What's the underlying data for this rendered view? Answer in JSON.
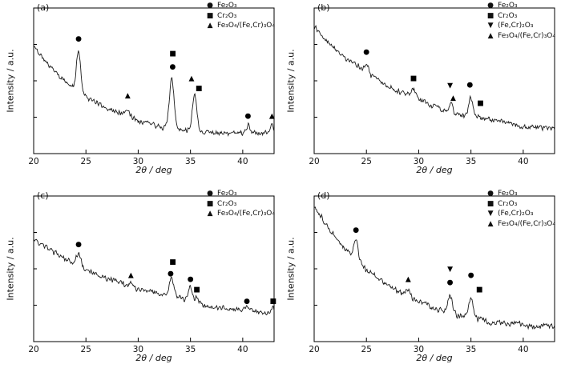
{
  "chart_data": [
    {
      "panel": "(a)",
      "type": "line",
      "xlabel": "2θ / deg",
      "ylabel": "Intensity / a.u.",
      "x_range": [
        20,
        43
      ],
      "x_ticks": [
        20,
        25,
        30,
        35,
        40
      ],
      "y_axis": "arbitrary units, no tick labels",
      "line_color": "#1a1a1a",
      "legend": [
        {
          "symbol": "filled-circle",
          "glyph": "●",
          "text": "Fe₂O₃"
        },
        {
          "symbol": "filled-square",
          "glyph": "■",
          "text": "Cr₂O₃"
        },
        {
          "symbol": "filled-triangle-up",
          "glyph": "▲",
          "text": "Fe₃O₄/(Fe,Cr)₃O₄"
        }
      ],
      "baseline": {
        "start": 0.74,
        "end": 0.13,
        "tau": 6
      },
      "noise": 0.02,
      "seed": 11,
      "peaks": [
        {
          "two_theta": 24.3,
          "rel_height": 0.28,
          "width": 0.28,
          "phase": "Fe₂O₃"
        },
        {
          "two_theta": 29.0,
          "rel_height": 0.05,
          "width": 0.25,
          "phase": "Fe₃O₄/(Fe,Cr)₃O₄"
        },
        {
          "two_theta": 33.2,
          "rel_height": 0.34,
          "width": 0.32,
          "phase": "Cr₂O₃ + Fe₂O₃"
        },
        {
          "two_theta": 35.4,
          "rel_height": 0.25,
          "width": 0.3,
          "phase": "Fe₃O₄/(Fe,Cr)₃O₄ + Cr₂O₃"
        },
        {
          "two_theta": 40.5,
          "rel_height": 0.05,
          "width": 0.25,
          "phase": "Fe₂O₃"
        },
        {
          "two_theta": 42.8,
          "rel_height": 0.06,
          "width": 0.25,
          "phase": "Fe₃O₄/(Fe,Cr)₃O₄"
        }
      ],
      "markers": [
        {
          "glyph": "●",
          "symbol": "filled-circle",
          "x": 24.3,
          "y": 0.79,
          "phase": "Fe₂O₃"
        },
        {
          "glyph": "▲",
          "symbol": "filled-triangle-up",
          "x": 29.0,
          "y": 0.4,
          "phase": "Fe₃O₄/(Fe,Cr)₃O₄"
        },
        {
          "glyph": "■",
          "symbol": "filled-square",
          "x": 33.3,
          "y": 0.69,
          "phase": "Cr₂O₃"
        },
        {
          "glyph": "●",
          "symbol": "filled-circle",
          "x": 33.3,
          "y": 0.6,
          "phase": "Fe₂O₃"
        },
        {
          "glyph": "▲",
          "symbol": "filled-triangle-up",
          "x": 35.1,
          "y": 0.52,
          "phase": "Fe₃O₄/(Fe,Cr)₃O₄"
        },
        {
          "glyph": "■",
          "symbol": "filled-square",
          "x": 35.8,
          "y": 0.45,
          "phase": "Cr₂O₃"
        },
        {
          "glyph": "●",
          "symbol": "filled-circle",
          "x": 40.5,
          "y": 0.26,
          "phase": "Fe₂O₃"
        },
        {
          "glyph": "▲",
          "symbol": "filled-triangle-up",
          "x": 42.8,
          "y": 0.26,
          "phase": "Fe₃O₄/(Fe,Cr)₃O₄"
        }
      ]
    },
    {
      "panel": "(b)",
      "type": "line",
      "xlabel": "2θ / deg",
      "ylabel": "Intensity / a.u.",
      "x_range": [
        20,
        43
      ],
      "x_ticks": [
        20,
        25,
        30,
        35,
        40
      ],
      "y_axis": "arbitrary units, no tick labels",
      "line_color": "#1a1a1a",
      "legend": [
        {
          "symbol": "filled-circle",
          "glyph": "●",
          "text": "Fe₂O₃"
        },
        {
          "symbol": "filled-square",
          "glyph": "■",
          "text": "Cr₂O₃"
        },
        {
          "symbol": "filled-triangle-down",
          "glyph": "▼",
          "text": "(Fe,Cr)₂O₃"
        },
        {
          "symbol": "filled-triangle-up",
          "glyph": "▲",
          "text": "Fe₃O₄/(Fe,Cr)₃O₄"
        }
      ],
      "baseline": {
        "start": 0.88,
        "end": 0.08,
        "tau": 10
      },
      "noise": 0.022,
      "seed": 22,
      "peaks": [
        {
          "two_theta": 25.0,
          "rel_height": 0.06,
          "width": 0.3,
          "phase": "Fe₂O₃"
        },
        {
          "two_theta": 29.5,
          "rel_height": 0.05,
          "width": 0.3,
          "phase": "Cr₂O₃"
        },
        {
          "two_theta": 33.1,
          "rel_height": 0.06,
          "width": 0.25,
          "phase": "(Fe,Cr)₂O₃ + Fe₃O₄/(Fe,Cr)₃O₄"
        },
        {
          "two_theta": 35.0,
          "rel_height": 0.13,
          "width": 0.3,
          "phase": "Fe₂O₃ + Cr₂O₃"
        }
      ],
      "markers": [
        {
          "glyph": "●",
          "symbol": "filled-circle",
          "x": 25.0,
          "y": 0.7,
          "phase": "Fe₂O₃"
        },
        {
          "glyph": "■",
          "symbol": "filled-square",
          "x": 29.5,
          "y": 0.52,
          "phase": "Cr₂O₃"
        },
        {
          "glyph": "▼",
          "symbol": "filled-triangle-down",
          "x": 33.0,
          "y": 0.47,
          "phase": "(Fe,Cr)₂O₃"
        },
        {
          "glyph": "▲",
          "symbol": "filled-triangle-up",
          "x": 33.3,
          "y": 0.385,
          "phase": "Fe₃O₄/(Fe,Cr)₃O₄"
        },
        {
          "glyph": "●",
          "symbol": "filled-circle",
          "x": 34.9,
          "y": 0.475,
          "phase": "Fe₂O₃"
        },
        {
          "glyph": "■",
          "symbol": "filled-square",
          "x": 35.9,
          "y": 0.35,
          "phase": "Cr₂O₃"
        }
      ]
    },
    {
      "panel": "(c)",
      "type": "line",
      "xlabel": "2θ / deg",
      "ylabel": "Intensity / a.u.",
      "x_range": [
        20,
        43
      ],
      "x_ticks": [
        20,
        25,
        30,
        35,
        40
      ],
      "y_axis": "arbitrary units, no tick labels",
      "line_color": "#1a1a1a",
      "legend": [
        {
          "symbol": "filled-circle",
          "glyph": "●",
          "text": "Fe₂O₃"
        },
        {
          "symbol": "filled-square",
          "glyph": "■",
          "text": "Cr₂O₃"
        },
        {
          "symbol": "filled-triangle-up",
          "glyph": "▲",
          "text": "Fe₃O₄/(Fe,Cr)₃O₄"
        }
      ],
      "baseline": {
        "start": 0.7,
        "end": 0.09,
        "tau": 12
      },
      "noise": 0.02,
      "seed": 33,
      "peaks": [
        {
          "two_theta": 24.3,
          "rel_height": 0.09,
          "width": 0.3,
          "phase": "Fe₂O₃"
        },
        {
          "two_theta": 29.3,
          "rel_height": 0.03,
          "width": 0.25,
          "phase": "Fe₃O₄/(Fe,Cr)₃O₄"
        },
        {
          "two_theta": 33.2,
          "rel_height": 0.12,
          "width": 0.3,
          "phase": "Cr₂O₃ + Fe₂O₃"
        },
        {
          "two_theta": 35.0,
          "rel_height": 0.1,
          "width": 0.28,
          "phase": "Fe₂O₃"
        },
        {
          "two_theta": 35.6,
          "rel_height": 0.04,
          "width": 0.2,
          "phase": "Cr₂O₃"
        },
        {
          "two_theta": 40.4,
          "rel_height": 0.03,
          "width": 0.25,
          "phase": "Fe₂O₃"
        },
        {
          "two_theta": 42.9,
          "rel_height": 0.04,
          "width": 0.25,
          "phase": "Cr₂O₃"
        }
      ],
      "markers": [
        {
          "glyph": "●",
          "symbol": "filled-circle",
          "x": 24.3,
          "y": 0.67,
          "phase": "Fe₂O₃"
        },
        {
          "glyph": "▲",
          "symbol": "filled-triangle-up",
          "x": 29.3,
          "y": 0.46,
          "phase": "Fe₃O₄/(Fe,Cr)₃O₄"
        },
        {
          "glyph": "■",
          "symbol": "filled-square",
          "x": 33.3,
          "y": 0.55,
          "phase": "Cr₂O₃"
        },
        {
          "glyph": "●",
          "symbol": "filled-circle",
          "x": 33.1,
          "y": 0.47,
          "phase": "Fe₂O₃"
        },
        {
          "glyph": "●",
          "symbol": "filled-circle",
          "x": 35.0,
          "y": 0.43,
          "phase": "Fe₂O₃"
        },
        {
          "glyph": "■",
          "symbol": "filled-square",
          "x": 35.6,
          "y": 0.36,
          "phase": "Cr₂O₃"
        },
        {
          "glyph": "●",
          "symbol": "filled-circle",
          "x": 40.4,
          "y": 0.28,
          "phase": "Fe₂O₃"
        },
        {
          "glyph": "■",
          "symbol": "filled-square",
          "x": 42.9,
          "y": 0.28,
          "phase": "Cr₂O₃"
        }
      ]
    },
    {
      "panel": "(d)",
      "type": "line",
      "xlabel": "2θ / deg",
      "ylabel": "Intensity / a.u.",
      "x_range": [
        20,
        43
      ],
      "x_ticks": [
        20,
        25,
        30,
        35,
        40
      ],
      "y_axis": "arbitrary units, no tick labels",
      "line_color": "#1a1a1a",
      "legend": [
        {
          "symbol": "filled-circle",
          "glyph": "●",
          "text": "Fe₂O₃"
        },
        {
          "symbol": "filled-square",
          "glyph": "■",
          "text": "Cr₂O₃"
        },
        {
          "symbol": "filled-triangle-down",
          "glyph": "▼",
          "text": "(Fe,Cr)₂O₃"
        },
        {
          "symbol": "filled-triangle-up",
          "glyph": "▲",
          "text": "Fe₃O₄/(Fe,Cr)₃O₄"
        }
      ],
      "baseline": {
        "start": 0.93,
        "end": 0.07,
        "tau": 7
      },
      "noise": 0.022,
      "seed": 44,
      "peaks": [
        {
          "two_theta": 24.0,
          "rel_height": 0.13,
          "width": 0.3,
          "phase": "Fe₂O₃"
        },
        {
          "two_theta": 29.0,
          "rel_height": 0.04,
          "width": 0.25,
          "phase": "Fe₃O₄/(Fe,Cr)₃O₄"
        },
        {
          "two_theta": 33.0,
          "rel_height": 0.12,
          "width": 0.3,
          "phase": "(Fe,Cr)₂O₃ + Fe₂O₃"
        },
        {
          "two_theta": 35.0,
          "rel_height": 0.14,
          "width": 0.3,
          "phase": "Fe₂O₃ + Cr₂O₃"
        }
      ],
      "markers": [
        {
          "glyph": "●",
          "symbol": "filled-circle",
          "x": 24.0,
          "y": 0.77,
          "phase": "Fe₂O₃"
        },
        {
          "glyph": "▲",
          "symbol": "filled-triangle-up",
          "x": 29.0,
          "y": 0.43,
          "phase": "Fe₃O₄/(Fe,Cr)₃O₄"
        },
        {
          "glyph": "▼",
          "symbol": "filled-triangle-down",
          "x": 33.0,
          "y": 0.5,
          "phase": "(Fe,Cr)₂O₃"
        },
        {
          "glyph": "●",
          "symbol": "filled-circle",
          "x": 33.0,
          "y": 0.41,
          "phase": "Fe₂O₃"
        },
        {
          "glyph": "●",
          "symbol": "filled-circle",
          "x": 35.0,
          "y": 0.46,
          "phase": "Fe₂O₃"
        },
        {
          "glyph": "■",
          "symbol": "filled-square",
          "x": 35.8,
          "y": 0.36,
          "phase": "Cr₂O₃"
        }
      ]
    }
  ]
}
